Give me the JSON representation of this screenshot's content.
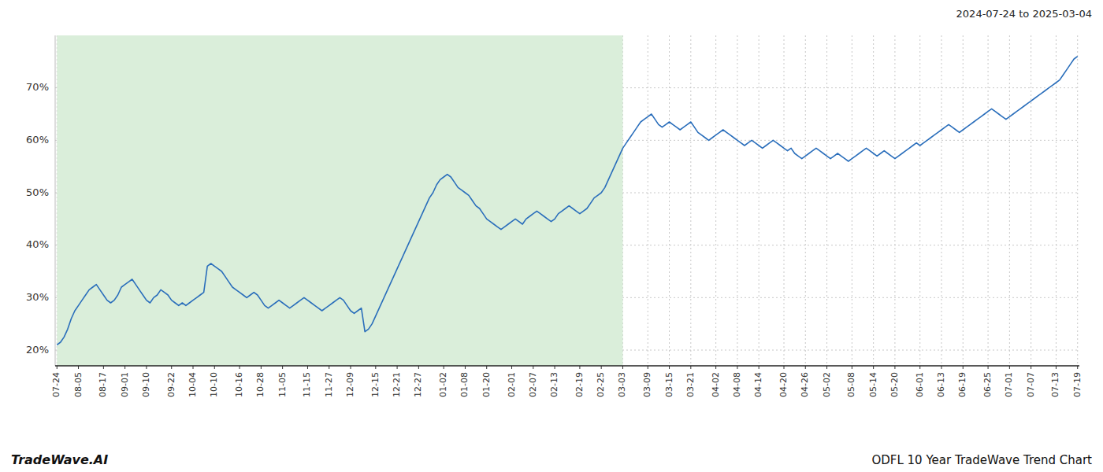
{
  "chart_data": {
    "type": "line",
    "title": "ODFL 10 Year TradeWave Trend Chart",
    "subtitle": "2024-07-24 to 2025-03-04",
    "annotations": [
      "TradeWave.AI"
    ],
    "color": "#2a6ebb",
    "shaded_range": {
      "start": "07-24",
      "end": "03-03",
      "color": "#daeeda"
    },
    "ylim": [
      17,
      80
    ],
    "yticks": [
      {
        "value": 20,
        "label": "20%"
      },
      {
        "value": 30,
        "label": "30%"
      },
      {
        "value": 40,
        "label": "40%"
      },
      {
        "value": 50,
        "label": "50%"
      },
      {
        "value": 60,
        "label": "60%"
      },
      {
        "value": 70,
        "label": "70%"
      }
    ],
    "grid": true,
    "categories": [
      "07-24",
      null,
      null,
      null,
      null,
      null,
      "08-05",
      null,
      null,
      null,
      null,
      null,
      null,
      "08-17",
      null,
      null,
      null,
      null,
      null,
      "09-01",
      null,
      null,
      null,
      null,
      null,
      "09-10",
      null,
      null,
      null,
      null,
      null,
      null,
      "09-22",
      null,
      null,
      null,
      null,
      null,
      "10-04",
      null,
      null,
      null,
      null,
      null,
      "10-10",
      null,
      null,
      null,
      null,
      null,
      null,
      "10-16",
      null,
      null,
      null,
      null,
      null,
      "10-28",
      null,
      null,
      null,
      null,
      null,
      "11-05",
      null,
      null,
      null,
      null,
      null,
      null,
      "11-15",
      null,
      null,
      null,
      null,
      null,
      "11-27",
      null,
      null,
      null,
      null,
      null,
      "12-09",
      null,
      null,
      null,
      null,
      null,
      null,
      "12-15",
      null,
      null,
      null,
      null,
      null,
      "12-21",
      null,
      null,
      null,
      null,
      null,
      "12-27",
      null,
      null,
      null,
      null,
      null,
      null,
      "01-02",
      null,
      null,
      null,
      null,
      null,
      "01-08",
      null,
      null,
      null,
      null,
      null,
      "01-20",
      null,
      null,
      null,
      null,
      null,
      null,
      "02-01",
      null,
      null,
      null,
      null,
      null,
      "02-07",
      null,
      null,
      null,
      null,
      null,
      "02-13",
      null,
      null,
      null,
      null,
      null,
      null,
      "02-19",
      null,
      null,
      null,
      null,
      null,
      "02-25",
      null,
      null,
      null,
      null,
      null,
      "03-03",
      null,
      null,
      null,
      null,
      null,
      null,
      "03-09",
      null,
      null,
      null,
      null,
      null,
      "03-15",
      null,
      null,
      null,
      null,
      null,
      "03-21",
      null,
      null,
      null,
      null,
      null,
      null,
      "04-02",
      null,
      null,
      null,
      null,
      null,
      "04-08",
      null,
      null,
      null,
      null,
      null,
      "04-14",
      null,
      null,
      null,
      null,
      null,
      null,
      "04-20",
      null,
      null,
      null,
      null,
      null,
      "04-26",
      null,
      null,
      null,
      null,
      null,
      "05-02",
      null,
      null,
      null,
      null,
      null,
      null,
      "05-08",
      null,
      null,
      null,
      null,
      null,
      "05-14",
      null,
      null,
      null,
      null,
      null,
      "05-20",
      null,
      null,
      null,
      null,
      null,
      null,
      "06-01",
      null,
      null,
      null,
      null,
      null,
      "06-13",
      null,
      null,
      null,
      null,
      null,
      "06-19",
      null,
      null,
      null,
      null,
      null,
      null,
      "06-25",
      null,
      null,
      null,
      null,
      null,
      "07-01",
      null,
      null,
      null,
      null,
      null,
      "07-07",
      null,
      null,
      null,
      null,
      null,
      null,
      "07-13",
      null,
      null,
      null,
      null,
      null,
      "07-19"
    ],
    "values": [
      21.0,
      21.5,
      22.5,
      24.0,
      26.0,
      27.5,
      28.5,
      29.5,
      30.5,
      31.5,
      32.0,
      32.5,
      31.5,
      30.5,
      29.5,
      29.0,
      29.5,
      30.5,
      32.0,
      32.5,
      33.0,
      33.5,
      32.5,
      31.5,
      30.5,
      29.5,
      29.0,
      30.0,
      30.5,
      31.5,
      31.0,
      30.5,
      29.5,
      29.0,
      28.5,
      29.0,
      28.5,
      29.0,
      29.5,
      30.0,
      30.5,
      31.0,
      36.0,
      36.5,
      36.0,
      35.5,
      35.0,
      34.0,
      33.0,
      32.0,
      31.5,
      31.0,
      30.5,
      30.0,
      30.5,
      31.0,
      30.5,
      29.5,
      28.5,
      28.0,
      28.5,
      29.0,
      29.5,
      29.0,
      28.5,
      28.0,
      28.5,
      29.0,
      29.5,
      30.0,
      29.5,
      29.0,
      28.5,
      28.0,
      27.5,
      28.0,
      28.5,
      29.0,
      29.5,
      30.0,
      29.5,
      28.5,
      27.5,
      27.0,
      27.5,
      28.0,
      23.5,
      24.0,
      25.0,
      26.5,
      28.0,
      29.5,
      31.0,
      32.5,
      34.0,
      35.5,
      37.0,
      38.5,
      40.0,
      41.5,
      43.0,
      44.5,
      46.0,
      47.5,
      49.0,
      50.0,
      51.5,
      52.5,
      53.0,
      53.5,
      53.0,
      52.0,
      51.0,
      50.5,
      50.0,
      49.5,
      48.5,
      47.5,
      47.0,
      46.0,
      45.0,
      44.5,
      44.0,
      43.5,
      43.0,
      43.5,
      44.0,
      44.5,
      45.0,
      44.5,
      44.0,
      45.0,
      45.5,
      46.0,
      46.5,
      46.0,
      45.5,
      45.0,
      44.5,
      45.0,
      46.0,
      46.5,
      47.0,
      47.5,
      47.0,
      46.5,
      46.0,
      46.5,
      47.0,
      48.0,
      49.0,
      49.5,
      50.0,
      51.0,
      52.5,
      54.0,
      55.5,
      57.0,
      58.5,
      59.5,
      60.5,
      61.5,
      62.5,
      63.5,
      64.0,
      64.5,
      65.0,
      64.0,
      63.0,
      62.5,
      63.0,
      63.5,
      63.0,
      62.5,
      62.0,
      62.5,
      63.0,
      63.5,
      62.5,
      61.5,
      61.0,
      60.5,
      60.0,
      60.5,
      61.0,
      61.5,
      62.0,
      61.5,
      61.0,
      60.5,
      60.0,
      59.5,
      59.0,
      59.5,
      60.0,
      59.5,
      59.0,
      58.5,
      59.0,
      59.5,
      60.0,
      59.5,
      59.0,
      58.5,
      58.0,
      58.5,
      57.5,
      57.0,
      56.5,
      57.0,
      57.5,
      58.0,
      58.5,
      58.0,
      57.5,
      57.0,
      56.5,
      57.0,
      57.5,
      57.0,
      56.5,
      56.0,
      56.5,
      57.0,
      57.5,
      58.0,
      58.5,
      58.0,
      57.5,
      57.0,
      57.5,
      58.0,
      57.5,
      57.0,
      56.5,
      57.0,
      57.5,
      58.0,
      58.5,
      59.0,
      59.5,
      59.0,
      59.5,
      60.0,
      60.5,
      61.0,
      61.5,
      62.0,
      62.5,
      63.0,
      62.5,
      62.0,
      61.5,
      62.0,
      62.5,
      63.0,
      63.5,
      64.0,
      64.5,
      65.0,
      65.5,
      66.0,
      65.5,
      65.0,
      64.5,
      64.0,
      64.5,
      65.0,
      65.5,
      66.0,
      66.5,
      67.0,
      67.5,
      68.0,
      68.5,
      69.0,
      69.5,
      70.0,
      70.5,
      71.0,
      71.5,
      72.5,
      73.5,
      74.5,
      75.5,
      76.0
    ]
  }
}
